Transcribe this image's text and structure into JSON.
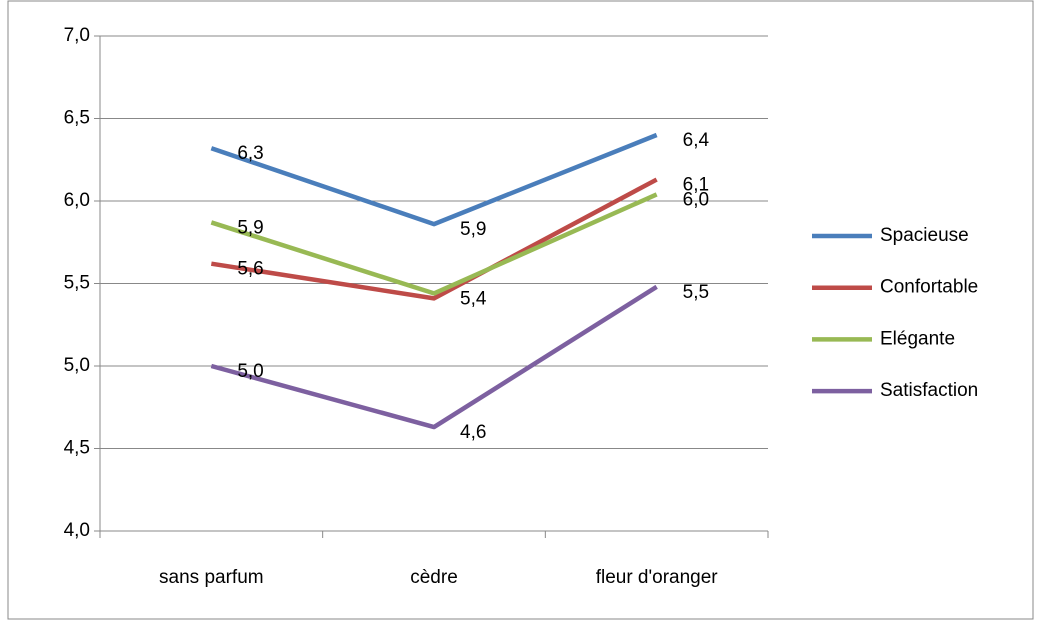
{
  "chart_data": {
    "type": "line",
    "categories": [
      "sans parfum",
      "cèdre",
      "fleur d'oranger"
    ],
    "series": [
      {
        "name": "Spacieuse",
        "color": "#4a7ebb",
        "values": [
          6.32,
          5.86,
          6.4
        ],
        "value_labels": [
          "6,3",
          "5,9",
          "6,4"
        ]
      },
      {
        "name": "Confortable",
        "color": "#be4b48",
        "values": [
          5.62,
          5.41,
          6.13
        ],
        "value_labels": [
          "5,6",
          null,
          "6,1"
        ]
      },
      {
        "name": "Elégante",
        "color": "#98b954",
        "values": [
          5.87,
          5.44,
          6.04
        ],
        "value_labels": [
          "5,9",
          "5,4",
          "6,0"
        ]
      },
      {
        "name": "Satisfaction",
        "color": "#7d60a0",
        "values": [
          5.0,
          4.63,
          5.48
        ],
        "value_labels": [
          "5,0",
          "4,6",
          "5,5"
        ]
      }
    ],
    "ylim": [
      4.0,
      7.0
    ],
    "yticks": [
      {
        "value": 4.0,
        "label": "4,0"
      },
      {
        "value": 4.5,
        "label": "4,5"
      },
      {
        "value": 5.0,
        "label": "5,0"
      },
      {
        "value": 5.5,
        "label": "5,5"
      },
      {
        "value": 6.0,
        "label": "6,0"
      },
      {
        "value": 6.5,
        "label": "6,5"
      },
      {
        "value": 7.0,
        "label": "7,0"
      }
    ],
    "grid": true,
    "legend": "right"
  }
}
